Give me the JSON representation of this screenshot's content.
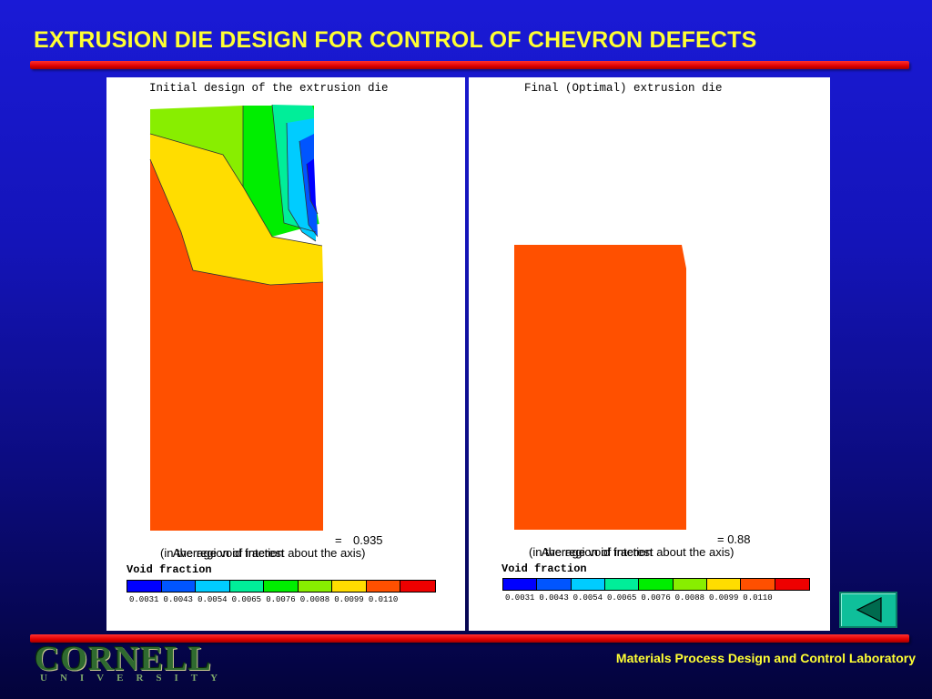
{
  "slide": {
    "title": "EXTRUSION DIE DESIGN FOR CONTROL OF CHEVRON DEFECTS",
    "footer_lab": "Materials Process Design and Control Laboratory",
    "logo_text": "CORNELL",
    "logo_subtext": "UNIVERSITY"
  },
  "colors": {
    "title": "#ffff33",
    "bar": "#e00000",
    "background_top": "#1a1ad6",
    "background_bottom": "#03033a",
    "region": "#ff5000"
  },
  "left_panel": {
    "title": "Initial design of the extrusion die",
    "avg_label": "Average void fraction",
    "avg_eq": "=",
    "avg_value": "0.935",
    "region_note": "(in the region of interest about the axis)",
    "void_label": "Void fraction"
  },
  "right_panel": {
    "title": "Final (Optimal) extrusion die",
    "avg_label": "Average void fraction",
    "avg_eq": "= 0.88",
    "region_note": "(in the region of interest about the axis)",
    "void_label": "Void fraction"
  },
  "colorbar": {
    "colors": [
      "#0000ff",
      "#0055ff",
      "#00ccff",
      "#00ee99",
      "#00ee00",
      "#88ee00",
      "#ffdd00",
      "#ff5000",
      "#ee0000"
    ],
    "ticks": [
      "0.0031",
      "0.0043",
      "0.0054",
      "0.0065",
      "0.0076",
      "0.0088",
      "0.0099",
      "0.0110"
    ]
  },
  "nav": {
    "back_icon": "triangle-left-icon"
  }
}
